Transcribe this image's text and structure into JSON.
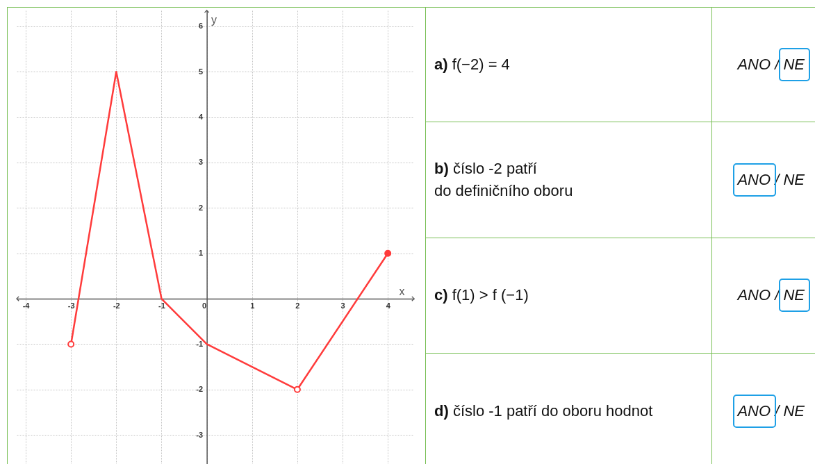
{
  "chart_data": {
    "type": "line",
    "xlabel": "x",
    "ylabel": "y",
    "xlim": [
      -4.2,
      4.58
    ],
    "ylim": [
      -3.64,
      6.35
    ],
    "xticks": [
      -4,
      -3,
      -2,
      -1,
      0,
      1,
      2,
      3,
      4
    ],
    "yticks": [
      -3,
      -2,
      -1,
      1,
      2,
      3,
      4,
      5,
      6
    ],
    "grid": true,
    "series": [
      {
        "color": "#ff3b3b",
        "x": [
          -3,
          -2,
          -1,
          0,
          2,
          4
        ],
        "values": [
          -1,
          5,
          0,
          -1,
          -2,
          1
        ]
      },
      {
        "type": "scatter",
        "color": "#ff3b3b",
        "x": [
          -3,
          2
        ],
        "values": [
          -1,
          -2
        ],
        "marker": "circle"
      },
      {
        "type": "scatter",
        "color": "#ff3b3b",
        "x": [
          4
        ],
        "values": [
          1
        ],
        "marker": "circle"
      }
    ],
    "annotations": [
      "a) f(−2) = 4",
      "ANO / NE",
      "b) číslo -2 patří\ndo definičního oboru",
      "ANO / NE",
      "c) f(1) > f (−1)",
      "ANO / NE",
      "d) číslo -1 patří do oboru hodnot",
      "ANO / NE"
    ]
  }
}
